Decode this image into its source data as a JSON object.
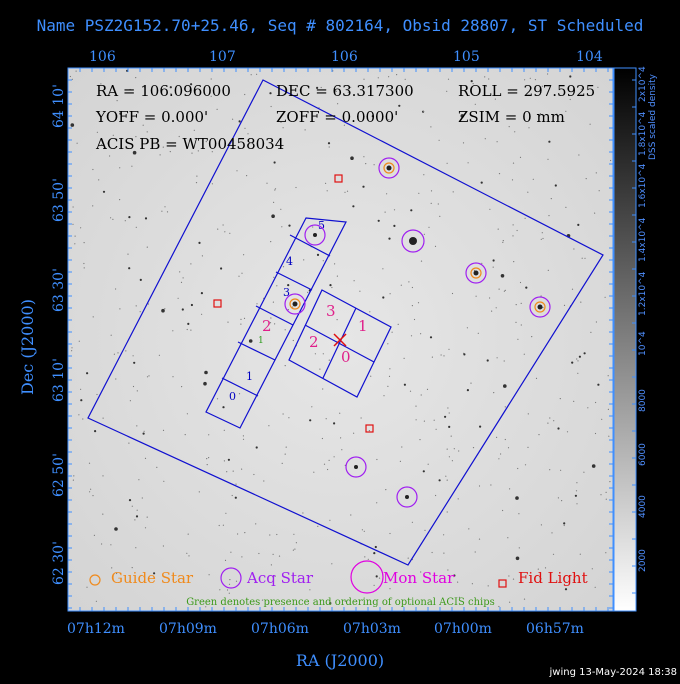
{
  "header": {
    "title": "Name PSZ2G152.70+25.46, Seq # 802164, Obsid 28807, ST Scheduled"
  },
  "info": {
    "ra": "RA = 106.096000",
    "dec": "DEC = 63.317300",
    "roll": "ROLL = 297.5925",
    "yoff": "YOFF =  0.000'",
    "zoff": "ZOFF =  0.0000'",
    "zsim": "ZSIM = 0 mm",
    "acis_pb": "ACIS PB = WT00458034"
  },
  "axes": {
    "xlabel": "RA (J2000)",
    "ylabel": "Dec (J2000)",
    "top_ticks": [
      "106",
      "107",
      "106",
      "105",
      "104"
    ],
    "bottom_ticks": [
      "07h12m",
      "07h09m",
      "07h06m",
      "07h03m",
      "07h00m",
      "06h57m"
    ],
    "left_ticks": [
      "64 10'",
      "63 50'",
      "63 30'",
      "63 10'",
      "62 50'",
      "62 30'"
    ]
  },
  "chips": {
    "acis_s": [
      "0",
      "1",
      "2",
      "3",
      "4",
      "5"
    ],
    "acis_i": [
      "3",
      "1",
      "2",
      "0"
    ],
    "optional": "1"
  },
  "legend": {
    "guide": "Guide Star",
    "acq": "Acq Star",
    "mon": "Mon Star",
    "fid": "Fid Light",
    "note": "Green denotes presence and ordering of optional ACIS chips"
  },
  "colorbar": {
    "label": "DSS scaled density",
    "ticks": [
      "2000",
      "4000",
      "6000",
      "8000",
      "10^4",
      "1.2x10^4",
      "1.4x10^4",
      "1.6x10^4",
      "1.8x10^4",
      "2x10^4"
    ]
  },
  "stamp": "jwing 13-May-2024 18:38",
  "colors": {
    "frame": "#3f8fff",
    "guide": "#f08a1c",
    "acq": "#a020f0",
    "mon": "#e000e0",
    "fid": "#e01010",
    "acis_i_label": "#e0208a",
    "acis_s_label": "#0000c0",
    "optional": "#2a9a1a"
  }
}
